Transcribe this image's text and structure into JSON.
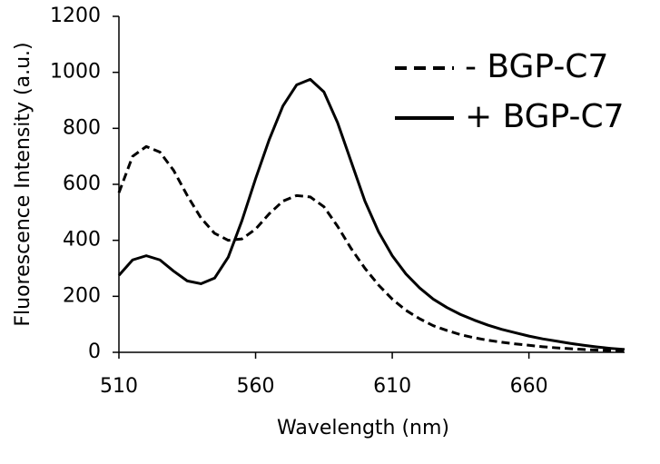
{
  "chart_data": {
    "type": "line",
    "xlabel": "Wavelength (nm)",
    "ylabel": "Fluorescence Intensity (a.u.)",
    "x": [
      510,
      515,
      520,
      525,
      530,
      535,
      540,
      545,
      550,
      555,
      560,
      565,
      570,
      575,
      580,
      585,
      590,
      595,
      600,
      605,
      610,
      615,
      620,
      625,
      630,
      635,
      640,
      645,
      650,
      655,
      660,
      665,
      670,
      675,
      680,
      685,
      690,
      695
    ],
    "series": [
      {
        "name": "- BGP-C7",
        "color": "#000000",
        "dash": true,
        "values": [
          570,
          700,
          735,
          715,
          650,
          560,
          480,
          425,
          400,
          405,
          440,
          495,
          540,
          560,
          555,
          520,
          450,
          370,
          300,
          240,
          190,
          150,
          120,
          95,
          78,
          63,
          52,
          43,
          36,
          30,
          25,
          20,
          16,
          13,
          10,
          8,
          6,
          5
        ]
      },
      {
        "name": "+ BGP-C7",
        "color": "#000000",
        "dash": false,
        "values": [
          275,
          330,
          345,
          330,
          290,
          255,
          245,
          265,
          340,
          470,
          620,
          760,
          880,
          955,
          975,
          930,
          820,
          680,
          540,
          430,
          345,
          280,
          230,
          190,
          160,
          135,
          115,
          97,
          82,
          70,
          58,
          48,
          40,
          32,
          25,
          19,
          14,
          10
        ]
      }
    ],
    "xlim": [
      510,
      695
    ],
    "xticks": [
      510,
      560,
      610,
      660
    ],
    "ylim": [
      0,
      1200
    ],
    "yticks": [
      0,
      200,
      400,
      600,
      800,
      1000,
      1200
    ],
    "legend": "upper right"
  }
}
